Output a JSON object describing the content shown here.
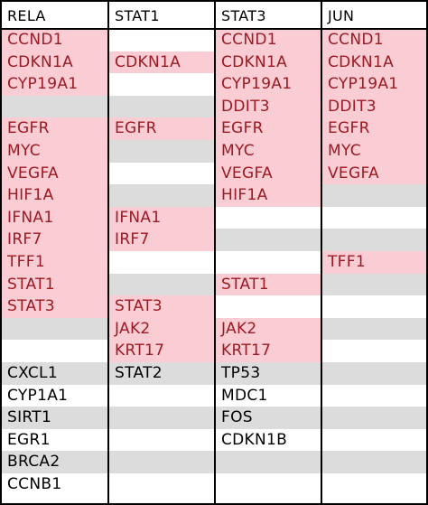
{
  "colors": {
    "hit_bg": "#f9cdd3",
    "alt_bg": "#dcdcdc",
    "plain_bg": "#ffffff",
    "hit_text": "#9c1a24",
    "plain_text": "#000000",
    "border": "#000000"
  },
  "table": {
    "columns": [
      {
        "header": "RELA",
        "cells": [
          {
            "text": "CCND1",
            "hit": true
          },
          {
            "text": "CDKN1A",
            "hit": true
          },
          {
            "text": "CYP19A1",
            "hit": true
          },
          {
            "text": "",
            "hit": false
          },
          {
            "text": "EGFR",
            "hit": true
          },
          {
            "text": "MYC",
            "hit": true
          },
          {
            "text": "VEGFA",
            "hit": true
          },
          {
            "text": "HIF1A",
            "hit": true
          },
          {
            "text": "IFNA1",
            "hit": true
          },
          {
            "text": "IRF7",
            "hit": true
          },
          {
            "text": "TFF1",
            "hit": true
          },
          {
            "text": "STAT1",
            "hit": true
          },
          {
            "text": "STAT3",
            "hit": true
          },
          {
            "text": "",
            "hit": false
          },
          {
            "text": "",
            "hit": false
          },
          {
            "text": "CXCL1",
            "hit": false
          },
          {
            "text": "CYP1A1",
            "hit": false
          },
          {
            "text": "SIRT1",
            "hit": false
          },
          {
            "text": "EGR1",
            "hit": false
          },
          {
            "text": "BRCA2",
            "hit": false
          },
          {
            "text": "CCNB1",
            "hit": false
          }
        ]
      },
      {
        "header": "STAT1",
        "cells": [
          {
            "text": "",
            "hit": false
          },
          {
            "text": "CDKN1A",
            "hit": true
          },
          {
            "text": "",
            "hit": false
          },
          {
            "text": "",
            "hit": false
          },
          {
            "text": "EGFR",
            "hit": true
          },
          {
            "text": "",
            "hit": false
          },
          {
            "text": "",
            "hit": false
          },
          {
            "text": "",
            "hit": false
          },
          {
            "text": "IFNA1",
            "hit": true
          },
          {
            "text": "IRF7",
            "hit": true
          },
          {
            "text": "",
            "hit": false
          },
          {
            "text": "",
            "hit": false
          },
          {
            "text": "STAT3",
            "hit": true
          },
          {
            "text": "JAK2",
            "hit": true
          },
          {
            "text": "KRT17",
            "hit": true
          },
          {
            "text": "STAT2",
            "hit": false
          },
          {
            "text": "",
            "hit": false
          },
          {
            "text": "",
            "hit": false
          },
          {
            "text": "",
            "hit": false
          },
          {
            "text": "",
            "hit": false
          },
          {
            "text": "",
            "hit": false
          }
        ]
      },
      {
        "header": "STAT3",
        "cells": [
          {
            "text": "CCND1",
            "hit": true
          },
          {
            "text": "CDKN1A",
            "hit": true
          },
          {
            "text": "CYP19A1",
            "hit": true
          },
          {
            "text": "DDIT3",
            "hit": true
          },
          {
            "text": "EGFR",
            "hit": true
          },
          {
            "text": "MYC",
            "hit": true
          },
          {
            "text": "VEGFA",
            "hit": true
          },
          {
            "text": "HIF1A",
            "hit": true
          },
          {
            "text": "",
            "hit": false
          },
          {
            "text": "",
            "hit": false
          },
          {
            "text": "",
            "hit": false
          },
          {
            "text": "STAT1",
            "hit": true
          },
          {
            "text": "",
            "hit": false
          },
          {
            "text": "JAK2",
            "hit": true
          },
          {
            "text": "KRT17",
            "hit": true
          },
          {
            "text": "TP53",
            "hit": false
          },
          {
            "text": "MDC1",
            "hit": false
          },
          {
            "text": "FOS",
            "hit": false
          },
          {
            "text": "CDKN1B",
            "hit": false
          },
          {
            "text": "",
            "hit": false
          },
          {
            "text": "",
            "hit": false
          }
        ]
      },
      {
        "header": "JUN",
        "cells": [
          {
            "text": "CCND1",
            "hit": true
          },
          {
            "text": "CDKN1A",
            "hit": true
          },
          {
            "text": "CYP19A1",
            "hit": true
          },
          {
            "text": "DDIT3",
            "hit": true
          },
          {
            "text": "EGFR",
            "hit": true
          },
          {
            "text": "MYC",
            "hit": true
          },
          {
            "text": "VEGFA",
            "hit": true
          },
          {
            "text": "",
            "hit": false
          },
          {
            "text": "",
            "hit": false
          },
          {
            "text": "",
            "hit": false
          },
          {
            "text": "TFF1",
            "hit": true
          },
          {
            "text": "",
            "hit": false
          },
          {
            "text": "",
            "hit": false
          },
          {
            "text": "",
            "hit": false
          },
          {
            "text": "",
            "hit": false
          },
          {
            "text": "",
            "hit": false
          },
          {
            "text": "",
            "hit": false
          },
          {
            "text": "",
            "hit": false
          },
          {
            "text": "",
            "hit": false
          },
          {
            "text": "",
            "hit": false
          },
          {
            "text": "",
            "hit": false
          }
        ]
      }
    ]
  }
}
